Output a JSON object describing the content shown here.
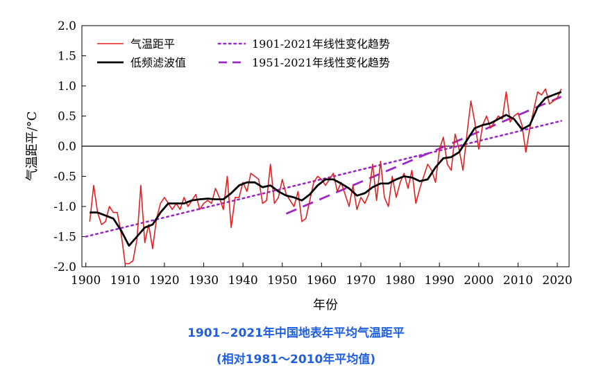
{
  "chart_data": {
    "type": "line",
    "xlabel": "年份",
    "ylabel": "气温距平/°C",
    "xlim": [
      1899,
      2023
    ],
    "ylim": [
      -2.0,
      2.0
    ],
    "xticks": [
      1900,
      1910,
      1920,
      1930,
      1940,
      1950,
      1960,
      1970,
      1980,
      1990,
      2000,
      2010,
      2020
    ],
    "yticks": [
      "2.0",
      "1.5",
      "1.0",
      "0.5",
      "0.0",
      "-0.5",
      "-1.0",
      "-1.5",
      "-2.0"
    ],
    "yticks_values": [
      2.0,
      1.5,
      1.0,
      0.5,
      0.0,
      -0.5,
      -1.0,
      -1.5,
      -2.0
    ],
    "legend_position": "top-left",
    "zero_line": 0.0,
    "series": [
      {
        "name": "气温距平",
        "style": "solid",
        "color": "#e02020",
        "x": [
          1901,
          1902,
          1903,
          1904,
          1905,
          1906,
          1907,
          1908,
          1909,
          1910,
          1911,
          1912,
          1913,
          1914,
          1915,
          1916,
          1917,
          1918,
          1919,
          1920,
          1921,
          1922,
          1923,
          1924,
          1925,
          1926,
          1927,
          1928,
          1929,
          1930,
          1931,
          1932,
          1933,
          1934,
          1935,
          1936,
          1937,
          1938,
          1939,
          1940,
          1941,
          1942,
          1943,
          1944,
          1945,
          1946,
          1947,
          1948,
          1949,
          1950,
          1951,
          1952,
          1953,
          1954,
          1955,
          1956,
          1957,
          1958,
          1959,
          1960,
          1961,
          1962,
          1963,
          1964,
          1965,
          1966,
          1967,
          1968,
          1969,
          1970,
          1971,
          1972,
          1973,
          1974,
          1975,
          1976,
          1977,
          1978,
          1979,
          1980,
          1981,
          1982,
          1983,
          1984,
          1985,
          1986,
          1987,
          1988,
          1989,
          1990,
          1991,
          1992,
          1993,
          1994,
          1995,
          1996,
          1997,
          1998,
          1999,
          2000,
          2001,
          2002,
          2003,
          2004,
          2005,
          2006,
          2007,
          2008,
          2009,
          2010,
          2011,
          2012,
          2013,
          2014,
          2015,
          2016,
          2017,
          2018,
          2019,
          2020,
          2021
        ],
        "values": [
          -1.25,
          -0.65,
          -1.1,
          -1.3,
          -1.25,
          -1.0,
          -1.1,
          -1.1,
          -1.45,
          -1.95,
          -1.95,
          -1.9,
          -1.55,
          -0.65,
          -1.6,
          -1.3,
          -1.7,
          -1.2,
          -0.95,
          -0.85,
          -0.95,
          -1.05,
          -0.95,
          -1.05,
          -0.85,
          -1.0,
          -0.9,
          -0.8,
          -1.05,
          -0.95,
          -0.9,
          -0.95,
          -0.7,
          -0.85,
          -1.05,
          -0.5,
          -1.35,
          -0.85,
          -0.85,
          -0.6,
          -0.75,
          -0.45,
          -0.5,
          -0.55,
          -0.95,
          -0.9,
          -0.3,
          -0.95,
          -0.85,
          -0.55,
          -0.8,
          -0.9,
          -1.0,
          -0.75,
          -1.25,
          -1.2,
          -0.9,
          -0.6,
          -0.5,
          -0.55,
          -0.65,
          -0.55,
          -0.45,
          -0.75,
          -0.6,
          -0.8,
          -1.0,
          -0.65,
          -1.05,
          -0.85,
          -0.95,
          -0.8,
          -0.3,
          -0.9,
          -0.25,
          -0.85,
          -1.0,
          -0.5,
          -0.85,
          -0.6,
          -0.45,
          -0.7,
          -0.4,
          -0.95,
          -0.7,
          -0.5,
          -0.3,
          -0.4,
          -0.6,
          -0.05,
          0.15,
          -0.3,
          -0.4,
          0.2,
          -0.05,
          -0.4,
          0.2,
          0.75,
          0.4,
          -0.05,
          0.35,
          0.5,
          0.3,
          0.4,
          0.5,
          0.45,
          0.9,
          0.4,
          0.5,
          0.55,
          0.35,
          -0.1,
          0.3,
          0.6,
          0.9,
          0.85,
          0.95,
          0.7,
          0.75,
          0.8,
          0.95
        ]
      },
      {
        "name": "低频滤波值",
        "style": "solid-thick",
        "color": "#000000",
        "x": [
          1901,
          1903,
          1905,
          1907,
          1909,
          1911,
          1913,
          1915,
          1917,
          1919,
          1921,
          1923,
          1925,
          1927,
          1929,
          1931,
          1933,
          1935,
          1937,
          1939,
          1941,
          1943,
          1945,
          1947,
          1949,
          1951,
          1953,
          1955,
          1957,
          1959,
          1961,
          1963,
          1965,
          1967,
          1969,
          1971,
          1973,
          1975,
          1977,
          1979,
          1981,
          1983,
          1985,
          1987,
          1989,
          1991,
          1993,
          1995,
          1997,
          1999,
          2001,
          2003,
          2005,
          2007,
          2009,
          2011,
          2013,
          2015,
          2017,
          2019,
          2021
        ],
        "values": [
          -1.1,
          -1.1,
          -1.15,
          -1.2,
          -1.4,
          -1.65,
          -1.5,
          -1.35,
          -1.3,
          -1.1,
          -0.95,
          -0.95,
          -0.95,
          -0.9,
          -0.88,
          -0.87,
          -0.88,
          -0.88,
          -0.78,
          -0.65,
          -0.6,
          -0.6,
          -0.68,
          -0.65,
          -0.75,
          -0.82,
          -0.85,
          -0.9,
          -0.8,
          -0.65,
          -0.55,
          -0.55,
          -0.62,
          -0.7,
          -0.82,
          -0.78,
          -0.68,
          -0.62,
          -0.62,
          -0.55,
          -0.5,
          -0.52,
          -0.58,
          -0.55,
          -0.35,
          -0.2,
          -0.18,
          -0.1,
          0.1,
          0.3,
          0.35,
          0.38,
          0.45,
          0.52,
          0.45,
          0.28,
          0.35,
          0.65,
          0.8,
          0.85,
          0.9
        ]
      },
      {
        "name": "1901-2021年线性变化趋势",
        "style": "dotted",
        "color": "#9b27c8",
        "x": [
          1900,
          2021
        ],
        "values": [
          -1.5,
          0.42
        ]
      },
      {
        "name": "1951-2021年线性变化趋势",
        "style": "dashed",
        "color": "#9b27c8",
        "x": [
          1951,
          2021
        ],
        "values": [
          -1.12,
          0.82
        ]
      }
    ]
  },
  "caption": {
    "line1": "1901~2021年中国地表年平均气温距平",
    "line2": "(相对1981～2010年平均值)"
  }
}
